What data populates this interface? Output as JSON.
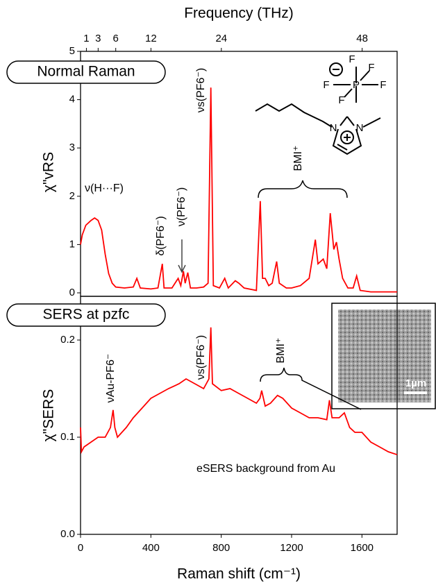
{
  "chart_data": [
    {
      "type": "line",
      "panel_label": "Normal Raman",
      "ylabel": "χ\"vRS",
      "x2label": "Frequency (THz)",
      "x2lim": [
        0,
        53.96
      ],
      "x2ticks": [
        1,
        3,
        6,
        12,
        24,
        48
      ],
      "xlim": [
        0,
        1800
      ],
      "ylim": [
        0,
        5
      ],
      "yticks": [
        0,
        1,
        2,
        3,
        4,
        5
      ],
      "series": [
        {
          "color": "#ff0000",
          "x": [
            0,
            10,
            30,
            60,
            80,
            100,
            120,
            140,
            160,
            180,
            200,
            250,
            300,
            320,
            340,
            400,
            440,
            465,
            475,
            520,
            555,
            570,
            585,
            595,
            610,
            625,
            660,
            700,
            725,
            741,
            755,
            790,
            820,
            840,
            880,
            900,
            930,
            1000,
            1022,
            1035,
            1050,
            1070,
            1090,
            1115,
            1130,
            1170,
            1200,
            1250,
            1300,
            1335,
            1350,
            1380,
            1400,
            1420,
            1440,
            1455,
            1470,
            1490,
            1520,
            1550,
            1570,
            1590,
            1650,
            1800
          ],
          "values": [
            1.0,
            1.2,
            1.4,
            1.5,
            1.55,
            1.5,
            1.3,
            0.8,
            0.4,
            0.2,
            0.12,
            0.1,
            0.12,
            0.3,
            0.1,
            0.08,
            0.1,
            0.6,
            0.1,
            0.1,
            0.3,
            0.15,
            0.45,
            0.2,
            0.42,
            0.1,
            0.1,
            0.12,
            0.2,
            4.25,
            0.15,
            0.1,
            0.3,
            0.1,
            0.25,
            0.2,
            0.1,
            0.05,
            1.9,
            0.3,
            0.3,
            0.15,
            0.2,
            0.65,
            0.2,
            0.1,
            0.1,
            0.15,
            0.3,
            1.1,
            0.6,
            0.7,
            0.5,
            1.65,
            0.9,
            1.05,
            0.7,
            0.3,
            0.1,
            0.1,
            0.35,
            0.05,
            0.02,
            0.02
          ]
        }
      ],
      "annotations": [
        "ν(H···F)",
        "δ(PF6⁻)",
        "ν(PF6⁻)",
        "νs(PF6⁻)",
        "BMI⁺"
      ],
      "structure": [
        "F",
        "F",
        "F",
        "F",
        "F",
        "P",
        "N",
        "N"
      ]
    },
    {
      "type": "line",
      "panel_label": "SERS at pzfc",
      "ylabel": "χ\"SERS",
      "xlabel": "Raman shift (cm⁻¹)",
      "xlim": [
        0,
        1800
      ],
      "xticks": [
        0,
        400,
        800,
        1200,
        1600
      ],
      "ylim": [
        0,
        0.245
      ],
      "yticks": [
        {
          "value": 0,
          "label": "0.0"
        },
        {
          "value": 0.1,
          "label": "0.1"
        },
        {
          "value": 0.2,
          "label": "0.2"
        }
      ],
      "series": [
        {
          "color": "#ff0000",
          "x": [
            0,
            5,
            20,
            60,
            100,
            140,
            170,
            185,
            195,
            210,
            260,
            300,
            350,
            400,
            450,
            500,
            560,
            600,
            650,
            700,
            730,
            741,
            750,
            800,
            850,
            900,
            950,
            1000,
            1020,
            1030,
            1050,
            1080,
            1120,
            1150,
            1200,
            1250,
            1300,
            1350,
            1400,
            1415,
            1430,
            1470,
            1500,
            1530,
            1560,
            1600,
            1650,
            1700,
            1750,
            1800
          ],
          "values": [
            0.11,
            0.085,
            0.09,
            0.095,
            0.1,
            0.1,
            0.11,
            0.128,
            0.11,
            0.1,
            0.11,
            0.12,
            0.13,
            0.14,
            0.145,
            0.15,
            0.155,
            0.16,
            0.155,
            0.15,
            0.16,
            0.213,
            0.155,
            0.148,
            0.15,
            0.145,
            0.14,
            0.135,
            0.14,
            0.148,
            0.132,
            0.135,
            0.143,
            0.14,
            0.13,
            0.125,
            0.12,
            0.12,
            0.118,
            0.138,
            0.12,
            0.12,
            0.125,
            0.11,
            0.105,
            0.105,
            0.095,
            0.09,
            0.085,
            0.082
          ]
        }
      ],
      "annotations": [
        "νAu-PF6⁻",
        "νs(PF6⁻)",
        "BMI⁺",
        "eSERS background from Au"
      ],
      "scale_bar": "1µm"
    }
  ]
}
